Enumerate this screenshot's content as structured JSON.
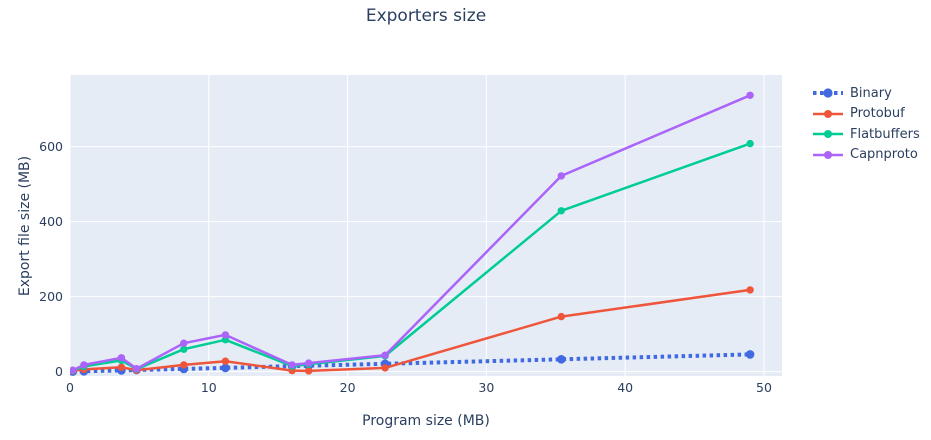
{
  "chart_data": {
    "type": "line",
    "title": "Exporters size",
    "xlabel": "Program size (MB)",
    "ylabel": "Export file size (MB)",
    "x": [
      0.2,
      1,
      3.7,
      4.8,
      8.2,
      11.2,
      16,
      17.2,
      22.7,
      35.4,
      49
    ],
    "series": [
      {
        "name": "Binary",
        "color": "#4169e1",
        "dash": "dot",
        "line_width": 4,
        "values": [
          0.2,
          1,
          3.5,
          4.5,
          7.5,
          10,
          15,
          16,
          21,
          33,
          46
        ]
      },
      {
        "name": "Protobuf",
        "color": "#ef553b",
        "dash": "solid",
        "line_width": 2.5,
        "values": [
          2,
          6,
          12,
          4,
          18,
          28,
          3,
          2,
          10,
          147,
          218
        ]
      },
      {
        "name": "Flatbuffers",
        "color": "#00cc96",
        "dash": "solid",
        "line_width": 2.5,
        "values": [
          3,
          14,
          30,
          7,
          60,
          85,
          15,
          20,
          42,
          429,
          608
        ]
      },
      {
        "name": "Capnproto",
        "color": "#ab63fa",
        "dash": "solid",
        "line_width": 2.5,
        "values": [
          4,
          18,
          37,
          8,
          76,
          98,
          18,
          23,
          44,
          522,
          737
        ]
      }
    ],
    "xticks": [
      0,
      10,
      20,
      30,
      40,
      50
    ],
    "yticks": [
      0,
      200,
      400,
      600
    ],
    "xlim": [
      0,
      51.3
    ],
    "ylim": [
      -11.5,
      791
    ],
    "grid": true,
    "legend_position": "right",
    "colors": {
      "paper_bg": "#ffffff",
      "plot_bg": "#e5ecf6",
      "grid": "#ffffff",
      "text": "#2a3f5f"
    }
  }
}
